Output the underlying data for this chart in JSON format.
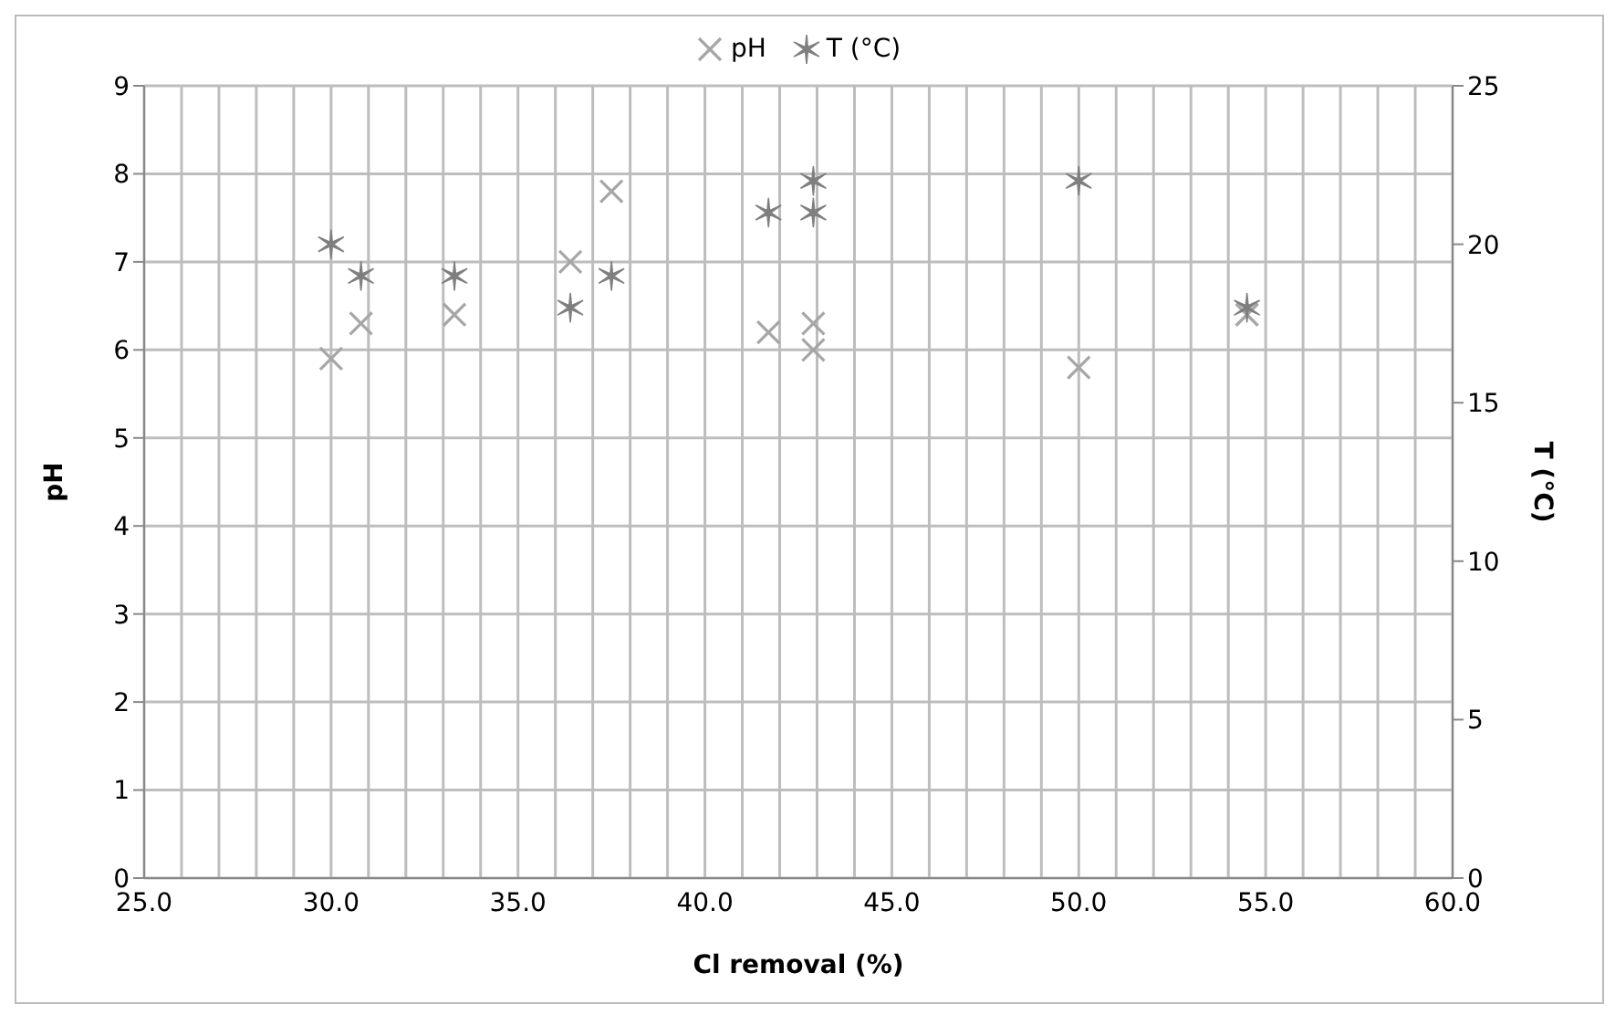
{
  "chart_data": {
    "type": "scatter",
    "xlabel": "Cl removal (%)",
    "ylabel": "pH",
    "y2label": "T (°C)",
    "xlim": [
      25,
      60
    ],
    "xticks": [
      {
        "value": 25,
        "label": "25.0"
      },
      {
        "value": 26,
        "label": null
      },
      {
        "value": 27,
        "label": null
      },
      {
        "value": 28,
        "label": null
      },
      {
        "value": 29,
        "label": null
      },
      {
        "value": 30,
        "label": "30.0"
      },
      {
        "value": 31,
        "label": null
      },
      {
        "value": 32,
        "label": null
      },
      {
        "value": 33,
        "label": null
      },
      {
        "value": 34,
        "label": null
      },
      {
        "value": 35,
        "label": "35.0"
      },
      {
        "value": 36,
        "label": null
      },
      {
        "value": 37,
        "label": null
      },
      {
        "value": 38,
        "label": null
      },
      {
        "value": 39,
        "label": null
      },
      {
        "value": 40,
        "label": "40.0"
      },
      {
        "value": 41,
        "label": null
      },
      {
        "value": 42,
        "label": null
      },
      {
        "value": 43,
        "label": null
      },
      {
        "value": 44,
        "label": null
      },
      {
        "value": 45,
        "label": "45.0"
      },
      {
        "value": 46,
        "label": null
      },
      {
        "value": 47,
        "label": null
      },
      {
        "value": 48,
        "label": null
      },
      {
        "value": 49,
        "label": null
      },
      {
        "value": 50,
        "label": "50.0"
      },
      {
        "value": 51,
        "label": null
      },
      {
        "value": 52,
        "label": null
      },
      {
        "value": 53,
        "label": null
      },
      {
        "value": 54,
        "label": null
      },
      {
        "value": 55,
        "label": "55.0"
      },
      {
        "value": 56,
        "label": null
      },
      {
        "value": 57,
        "label": null
      },
      {
        "value": 58,
        "label": null
      },
      {
        "value": 59,
        "label": null
      },
      {
        "value": 60,
        "label": "60.0"
      }
    ],
    "ylim": [
      0,
      9
    ],
    "yticks": [
      0,
      1,
      2,
      3,
      4,
      5,
      6,
      7,
      8,
      9
    ],
    "y2lim": [
      0,
      25
    ],
    "y2ticks": [
      0,
      5,
      10,
      15,
      20,
      25
    ],
    "grid": true,
    "legend": "top",
    "series": [
      {
        "name": "pH",
        "color": "#a6a6a6",
        "marker": "cross",
        "x": [
          30.0,
          30.8,
          33.3,
          36.4,
          37.5,
          41.7,
          42.9,
          42.9,
          50.0,
          54.5
        ],
        "values": [
          5.9,
          6.3,
          6.4,
          7.0,
          7.8,
          6.2,
          6.3,
          6.0,
          5.8,
          6.4
        ]
      },
      {
        "name": "T (°C)",
        "color": "#7f7f7f",
        "axis": "y2",
        "x": [
          30.0,
          30.8,
          33.3,
          36.4,
          37.5,
          41.7,
          42.9,
          42.9,
          50.0,
          54.5
        ],
        "values": [
          20,
          19,
          19,
          18,
          19,
          21,
          21,
          22,
          22,
          18
        ]
      }
    ]
  }
}
